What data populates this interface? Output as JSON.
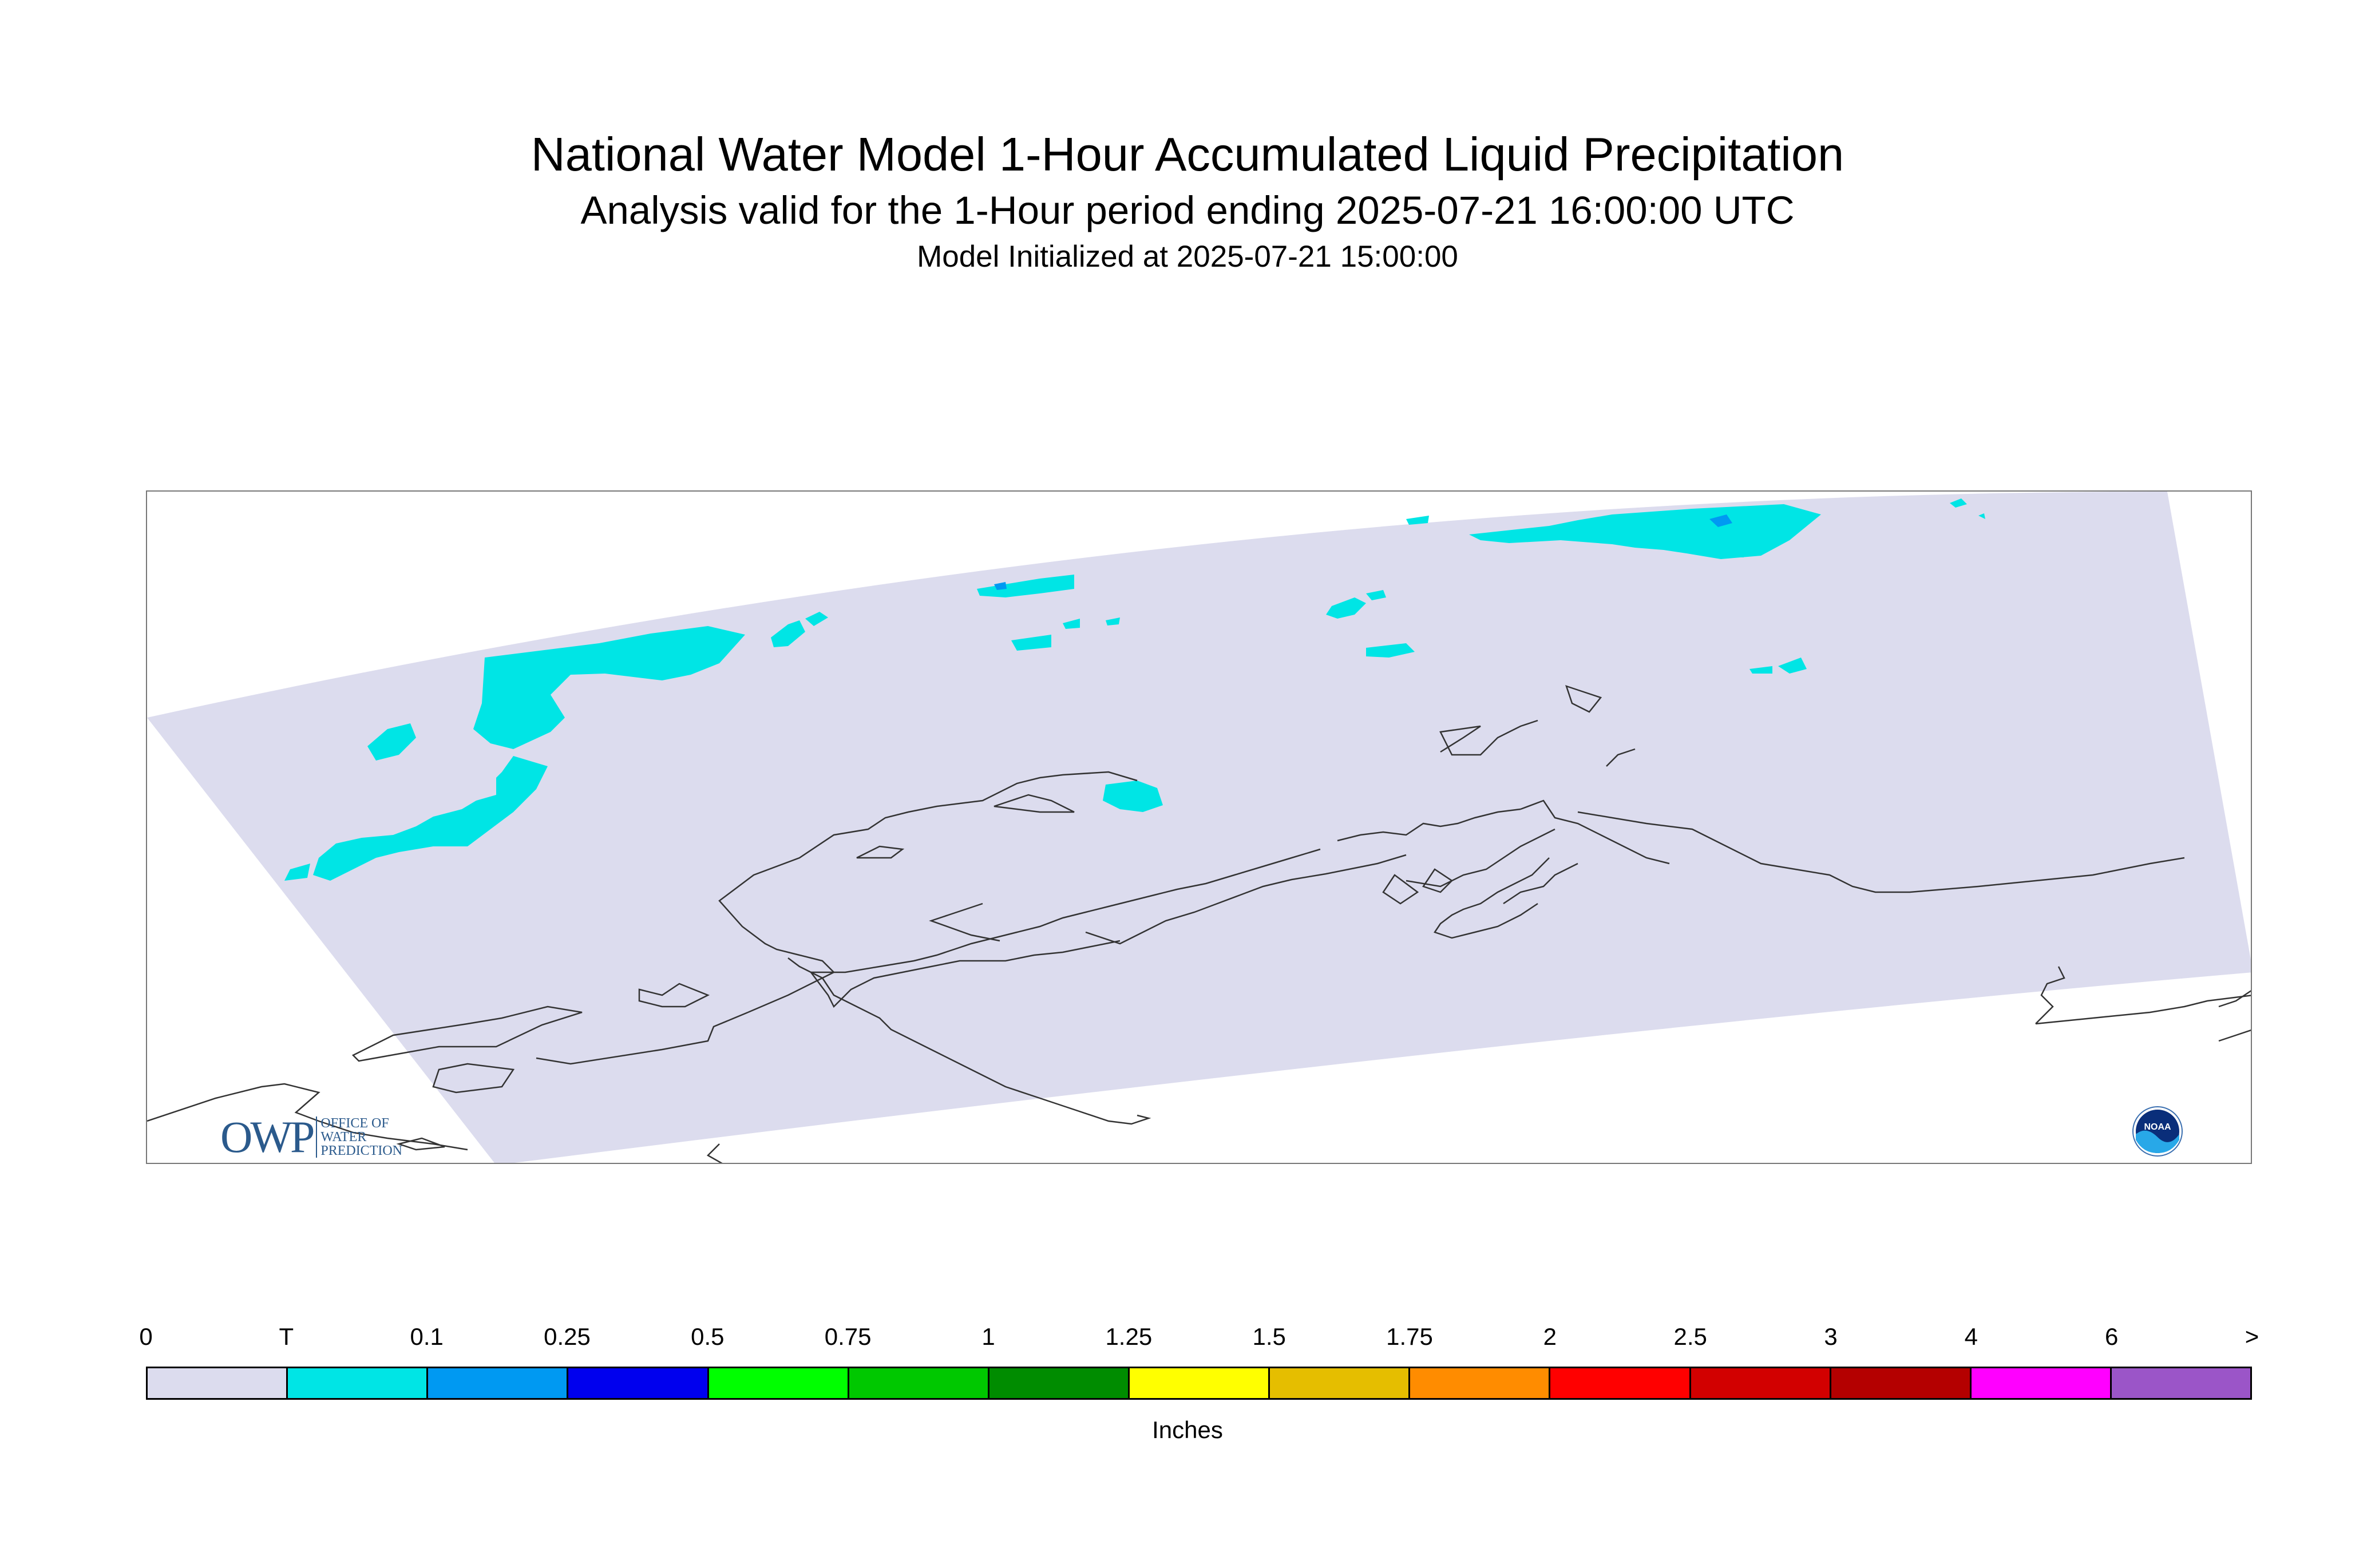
{
  "title": "National Water Model 1-Hour Accumulated Liquid Precipitation",
  "subtitle": "Analysis valid for the 1-Hour period ending 2025-07-21 16:00:00 UTC",
  "init_line": "Model Initialized at 2025-07-21 15:00:00",
  "logos": {
    "owp": {
      "letters": "OWP",
      "line1": "OFFICE OF",
      "line2": "WATER",
      "line3": "PREDICTION"
    },
    "noaa": {
      "letters": "NOAA"
    }
  },
  "legend": {
    "units": "Inches",
    "ticks": [
      "0",
      "T",
      "0.1",
      "0.25",
      "0.5",
      "0.75",
      "1",
      "1.25",
      "1.5",
      "1.75",
      "2",
      "2.5",
      "3",
      "4",
      "6",
      ">"
    ],
    "colors": [
      "#dcdcee",
      "#00e5e5",
      "#0099f2",
      "#0000ee",
      "#00ff00",
      "#00c800",
      "#008c00",
      "#ffff00",
      "#e5be00",
      "#ff8c00",
      "#ff0000",
      "#d20000",
      "#b40000",
      "#ff00ff",
      "#9b55c8"
    ]
  },
  "colors": {
    "domain_fill": "#dcdcee",
    "trace": "#00e5e5",
    "light": "#0099f2",
    "coast": "#333333"
  }
}
